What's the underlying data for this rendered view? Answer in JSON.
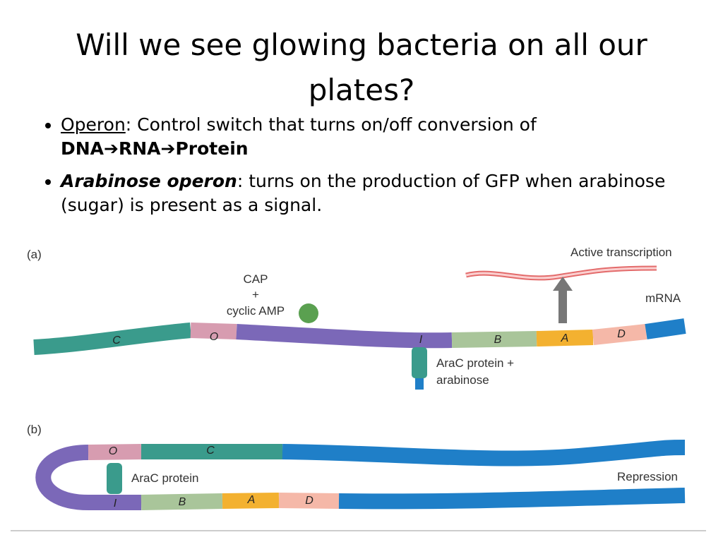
{
  "slide": {
    "title": "Will we see glowing bacteria on all our plates?",
    "bullets": [
      {
        "term": "Operon",
        "text": ":  Control switch that turns on/off conversion of ",
        "bold": [
          "DNA",
          "➔",
          "RNA",
          "➔",
          "Protein"
        ]
      },
      {
        "term": "Arabinose operon",
        "text": ":  turns on the production of GFP when arabinose (sugar) is present as a signal."
      }
    ]
  },
  "diagram": {
    "a": {
      "label": "(a)",
      "active": "Active transcription",
      "cap": "CAP",
      "plus": "+",
      "camp": "cyclic AMP",
      "mrna": "mRNA",
      "genes": [
        "C",
        "O",
        "I",
        "B",
        "A",
        "D"
      ],
      "arac1": "AraC protein +",
      "arac2": "arabinose"
    },
    "b": {
      "label": "(b)",
      "top_genes": [
        "O",
        "C"
      ],
      "arac": "AraC protein",
      "repression": "Repression",
      "bottom_genes": [
        "I",
        "B",
        "A",
        "D"
      ]
    }
  }
}
